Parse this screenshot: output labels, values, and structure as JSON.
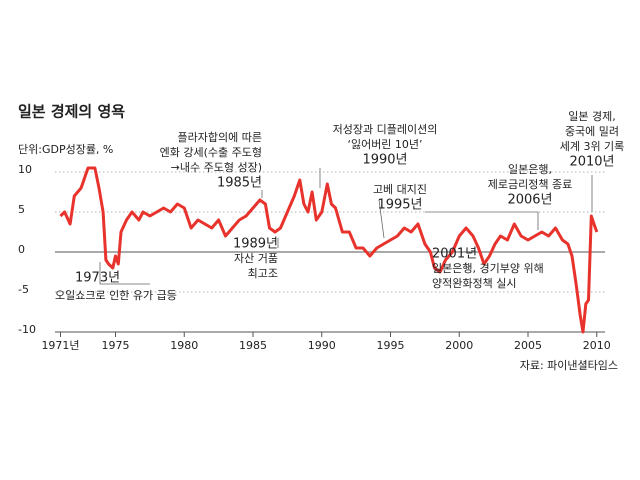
{
  "chart_data": {
    "type": "line",
    "title": "일본 경제의 영욕",
    "y_label": "단위:GDP성장률, %",
    "source": "자료: 파이낸셜타임스",
    "xlim": [
      1970.6,
      2010.6
    ],
    "xticks": [
      {
        "value": 1971,
        "label": "1971년"
      },
      1975,
      1980,
      1985,
      1990,
      1995,
      2000,
      2005,
      2010
    ],
    "ylim": [
      -10,
      10
    ],
    "yticks": [
      10,
      5,
      0,
      -5,
      -10
    ],
    "grid": true,
    "series": [
      {
        "name": "GDP성장률",
        "color": "#e8322c",
        "x": [
          1971.0,
          1971.3,
          1971.7,
          1972.0,
          1972.5,
          1973.0,
          1973.5,
          1973.8,
          1974.1,
          1974.3,
          1974.5,
          1974.8,
          1975.0,
          1975.2,
          1975.4,
          1975.8,
          1976.2,
          1976.7,
          1977.0,
          1977.5,
          1978.0,
          1978.5,
          1979.0,
          1979.5,
          1980.0,
          1980.5,
          1981.0,
          1981.5,
          1982.0,
          1982.5,
          1983.0,
          1983.5,
          1984.0,
          1984.5,
          1985.0,
          1985.5,
          1985.9,
          1986.2,
          1986.6,
          1987.0,
          1987.5,
          1988.0,
          1988.4,
          1988.7,
          1989.0,
          1989.3,
          1989.6,
          1990.0,
          1990.4,
          1990.7,
          1991.0,
          1991.5,
          1992.0,
          1992.5,
          1993.0,
          1993.5,
          1994.0,
          1994.5,
          1995.0,
          1995.5,
          1996.0,
          1996.5,
          1997.0,
          1997.5,
          1997.9,
          1998.2,
          1998.6,
          1999.0,
          1999.5,
          2000.0,
          2000.5,
          2001.0,
          2001.4,
          2001.8,
          2002.2,
          2002.6,
          2003.0,
          2003.5,
          2004.0,
          2004.5,
          2005.0,
          2005.5,
          2006.0,
          2006.5,
          2007.0,
          2007.5,
          2007.9,
          2008.2,
          2008.5,
          2008.8,
          2009.0,
          2009.2,
          2009.4,
          2009.6,
          2009.8,
          2010.0
        ],
        "values": [
          4.5,
          5,
          3.5,
          7,
          8,
          10.5,
          10.5,
          8,
          5,
          -1,
          -1.5,
          -2,
          -0.5,
          -1.5,
          2.5,
          4,
          5,
          4,
          5,
          4.5,
          5,
          5.5,
          5,
          6,
          5.5,
          3,
          4,
          3.5,
          3,
          4,
          2,
          3,
          4,
          4.5,
          5.5,
          6.5,
          6,
          3,
          2.5,
          3,
          5,
          7,
          9,
          6,
          5,
          7.5,
          4,
          5,
          8.5,
          6,
          5.5,
          2.5,
          2.5,
          0.5,
          0.5,
          -0.5,
          0.5,
          1,
          1.5,
          2,
          3,
          2.5,
          3.5,
          1,
          0,
          -2,
          -2.5,
          -1,
          0,
          2,
          3,
          2,
          0.5,
          -1.5,
          -0.5,
          1,
          2,
          1.5,
          3.5,
          2,
          1.5,
          2,
          2.5,
          2,
          3,
          1.5,
          1,
          -0.5,
          -4,
          -8,
          -10,
          -6.5,
          -6,
          4.5,
          3.5,
          2.5
        ]
      }
    ],
    "annotations": [
      {
        "lines": [
          "1973년",
          "오일쇼크로 인한 유가 급등"
        ]
      },
      {
        "lines": [
          "플라자합의에 따른",
          "엔화 강세(수출 주도형",
          "→내수 주도형 성장)",
          "1985년"
        ]
      },
      {
        "lines": [
          "1989년",
          "자산 거품",
          "최고조"
        ]
      },
      {
        "lines": [
          "저성장과 디플레이션의",
          "‘잃어버린 10년’",
          "1990년"
        ]
      },
      {
        "lines": [
          "고베 대지진",
          "1995년"
        ]
      },
      {
        "lines": [
          "2001년",
          "일본은행, 경기부양 위해",
          "양적완화정책 실시"
        ]
      },
      {
        "lines": [
          "일본은행,",
          "제로금리정책 종료",
          "2006년"
        ]
      },
      {
        "lines": [
          "일본 경제,",
          "중국에 밀려",
          "세계 3위 기록",
          "2010년"
        ]
      }
    ]
  }
}
